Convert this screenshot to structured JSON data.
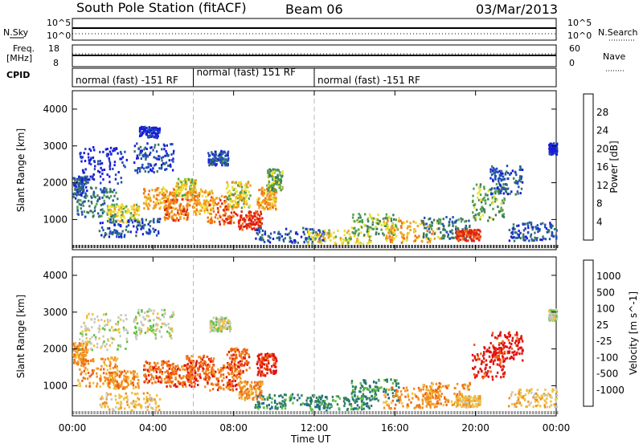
{
  "header": {
    "station": "South Pole Station (fitACF)",
    "beam": "Beam 06",
    "date": "03/Mar/2013"
  },
  "strip_labels": {
    "nsky": "N.Sky",
    "nsky_top": "10^5",
    "nsky_bottom": "10^0",
    "nsearch": "N.Search",
    "nsearch_top": "10^5",
    "nsearch_bottom": "10^0",
    "freq_line1": "Freq.",
    "freq_line2": "[MHz]",
    "freq_top": "18",
    "freq_bottom": "8",
    "nave": "Nave",
    "nave_top": "60",
    "nave_bottom": "0",
    "cpid": "CPID"
  },
  "cpid_segments": [
    {
      "label": "normal (fast) -151 RF",
      "start": 0,
      "end": 6
    },
    {
      "label": "normal (fast) 151 RF",
      "start": 6,
      "end": 12
    },
    {
      "label": "normal (fast) -151 RF",
      "start": 12,
      "end": 24
    }
  ],
  "chart_data": [
    {
      "type": "heatmap",
      "panel": "power",
      "ylabel": "Slant Range [km]",
      "xlabel": "Time UT",
      "x_range_hours": [
        0,
        24
      ],
      "ylim": [
        180,
        4500
      ],
      "yticks": [
        1000,
        2000,
        3000,
        4000
      ],
      "xticks": [
        "00:00",
        "04:00",
        "08:00",
        "12:00",
        "16:00",
        "20:00",
        "00:00"
      ],
      "colorbar": {
        "label": "Power [dB]",
        "ticks": [
          "4",
          "8",
          "12",
          "16",
          "20",
          "24",
          "28"
        ],
        "colors": [
          "#1a1adc",
          "#2050b4",
          "#3c7860",
          "#50a050",
          "#e8e030",
          "#f0a020",
          "#f07010",
          "#e02010"
        ]
      },
      "blobs": [
        {
          "t": 0.3,
          "r": 1900,
          "dt": 0.4,
          "dr": 300,
          "level": 1
        },
        {
          "t": 1.5,
          "r": 2500,
          "dt": 1.2,
          "dr": 500,
          "level": 0
        },
        {
          "t": 1.2,
          "r": 1500,
          "dt": 1.0,
          "dr": 400,
          "level": 2
        },
        {
          "t": 2.5,
          "r": 1200,
          "dt": 0.8,
          "dr": 250,
          "level": 4
        },
        {
          "t": 2.8,
          "r": 800,
          "dt": 1.5,
          "dr": 250,
          "level": 1
        },
        {
          "t": 3.8,
          "r": 3400,
          "dt": 0.5,
          "dr": 150,
          "level": 0
        },
        {
          "t": 4.0,
          "r": 2700,
          "dt": 1.0,
          "dr": 400,
          "level": 1
        },
        {
          "t": 4.3,
          "r": 1600,
          "dt": 0.8,
          "dr": 300,
          "level": 5
        },
        {
          "t": 5.1,
          "r": 1300,
          "dt": 0.6,
          "dr": 300,
          "level": 6
        },
        {
          "t": 5.6,
          "r": 1900,
          "dt": 0.5,
          "dr": 250,
          "level": 4
        },
        {
          "t": 6.3,
          "r": 1500,
          "dt": 0.7,
          "dr": 350,
          "level": 5
        },
        {
          "t": 7.2,
          "r": 2700,
          "dt": 0.5,
          "dr": 200,
          "level": 1
        },
        {
          "t": 7.4,
          "r": 1300,
          "dt": 0.8,
          "dr": 400,
          "level": 6
        },
        {
          "t": 8.2,
          "r": 1700,
          "dt": 0.6,
          "dr": 350,
          "level": 4
        },
        {
          "t": 8.8,
          "r": 1000,
          "dt": 0.6,
          "dr": 250,
          "level": 7
        },
        {
          "t": 9.6,
          "r": 1600,
          "dt": 0.5,
          "dr": 300,
          "level": 5
        },
        {
          "t": 10.0,
          "r": 2100,
          "dt": 0.4,
          "dr": 300,
          "level": 3
        },
        {
          "t": 10.8,
          "r": 600,
          "dt": 1.8,
          "dr": 200,
          "level": 1
        },
        {
          "t": 13.2,
          "r": 550,
          "dt": 1.6,
          "dr": 200,
          "level": 4
        },
        {
          "t": 15.0,
          "r": 900,
          "dt": 1.2,
          "dr": 300,
          "level": 3
        },
        {
          "t": 16.8,
          "r": 700,
          "dt": 1.4,
          "dr": 300,
          "level": 5
        },
        {
          "t": 18.5,
          "r": 800,
          "dt": 1.2,
          "dr": 300,
          "level": 2
        },
        {
          "t": 19.6,
          "r": 600,
          "dt": 0.6,
          "dr": 150,
          "level": 7
        },
        {
          "t": 20.6,
          "r": 1500,
          "dt": 0.8,
          "dr": 500,
          "level": 3
        },
        {
          "t": 21.5,
          "r": 2100,
          "dt": 0.8,
          "dr": 400,
          "level": 1
        },
        {
          "t": 22.8,
          "r": 700,
          "dt": 1.2,
          "dr": 250,
          "level": 1
        },
        {
          "t": 23.8,
          "r": 2950,
          "dt": 0.2,
          "dr": 150,
          "level": 0
        }
      ]
    },
    {
      "type": "heatmap",
      "panel": "velocity",
      "ylabel": "Slant Range [km]",
      "xlabel": "Time UT",
      "x_range_hours": [
        0,
        24
      ],
      "ylim": [
        180,
        4500
      ],
      "yticks": [
        1000,
        2000,
        3000,
        4000
      ],
      "xticks": [
        "00:00",
        "04:00",
        "08:00",
        "12:00",
        "16:00",
        "20:00",
        "00:00"
      ],
      "colorbar": {
        "label": "Velocity [m s^-1]",
        "ticks": [
          "1000",
          "500",
          "100",
          "25",
          "-25",
          "-100",
          "-500",
          "-1000"
        ],
        "colors": [
          "#2040c0",
          "#206890",
          "#308060",
          "#60c040",
          "#c8c8c0",
          "#f0c040",
          "#f09020",
          "#f06010",
          "#e01010"
        ]
      },
      "blobs": [
        {
          "t": 0.3,
          "r": 1900,
          "dt": 0.4,
          "dr": 300,
          "level": 6
        },
        {
          "t": 1.5,
          "r": 2500,
          "dt": 1.2,
          "dr": 500,
          "level": 4
        },
        {
          "t": 1.2,
          "r": 1400,
          "dt": 1.0,
          "dr": 400,
          "level": 6
        },
        {
          "t": 2.5,
          "r": 1200,
          "dt": 0.8,
          "dr": 250,
          "level": 6
        },
        {
          "t": 2.8,
          "r": 600,
          "dt": 1.5,
          "dr": 250,
          "level": 5
        },
        {
          "t": 4.0,
          "r": 2700,
          "dt": 1.0,
          "dr": 400,
          "level": 4
        },
        {
          "t": 4.3,
          "r": 1400,
          "dt": 0.8,
          "dr": 300,
          "level": 7
        },
        {
          "t": 5.4,
          "r": 1300,
          "dt": 0.8,
          "dr": 300,
          "level": 7
        },
        {
          "t": 6.3,
          "r": 1500,
          "dt": 0.7,
          "dr": 350,
          "level": 7
        },
        {
          "t": 7.3,
          "r": 2700,
          "dt": 0.5,
          "dr": 200,
          "level": 4
        },
        {
          "t": 7.4,
          "r": 1300,
          "dt": 0.9,
          "dr": 400,
          "level": 7
        },
        {
          "t": 8.2,
          "r": 1700,
          "dt": 0.6,
          "dr": 350,
          "level": 7
        },
        {
          "t": 8.8,
          "r": 900,
          "dt": 0.6,
          "dr": 250,
          "level": 6
        },
        {
          "t": 9.6,
          "r": 1600,
          "dt": 0.5,
          "dr": 300,
          "level": 8
        },
        {
          "t": 10.8,
          "r": 600,
          "dt": 1.8,
          "dr": 200,
          "level": 2
        },
        {
          "t": 13.2,
          "r": 550,
          "dt": 1.6,
          "dr": 200,
          "level": 2
        },
        {
          "t": 15.0,
          "r": 900,
          "dt": 1.2,
          "dr": 300,
          "level": 2
        },
        {
          "t": 16.8,
          "r": 700,
          "dt": 1.4,
          "dr": 300,
          "level": 6
        },
        {
          "t": 18.5,
          "r": 800,
          "dt": 1.2,
          "dr": 300,
          "level": 6
        },
        {
          "t": 19.6,
          "r": 600,
          "dt": 0.6,
          "dr": 150,
          "level": 5
        },
        {
          "t": 20.6,
          "r": 1700,
          "dt": 0.8,
          "dr": 500,
          "level": 8
        },
        {
          "t": 21.5,
          "r": 2100,
          "dt": 0.8,
          "dr": 400,
          "level": 8
        },
        {
          "t": 22.8,
          "r": 700,
          "dt": 1.2,
          "dr": 250,
          "level": 5
        },
        {
          "t": 23.8,
          "r": 2950,
          "dt": 0.2,
          "dr": 150,
          "level": 4
        }
      ]
    }
  ]
}
